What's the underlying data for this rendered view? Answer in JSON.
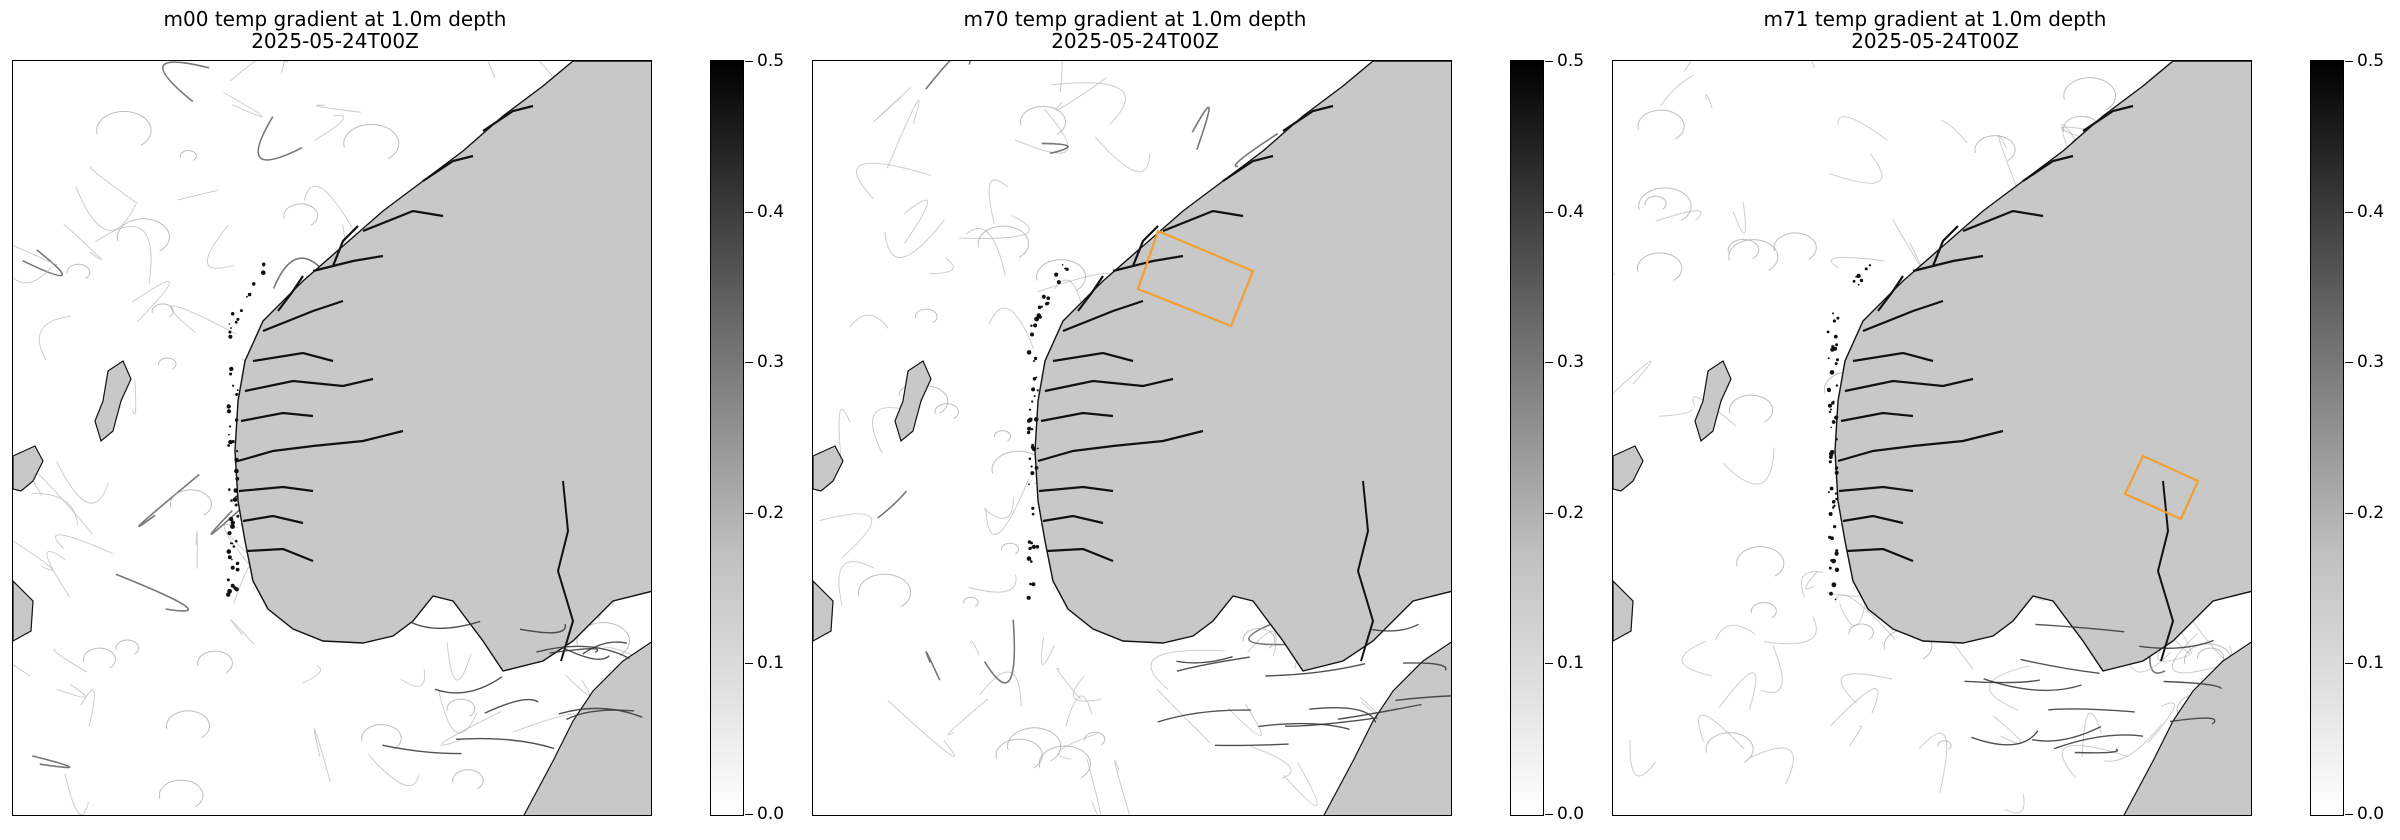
{
  "chart_data": [
    {
      "type": "heatmap",
      "title": "m00 temp gradient at 1.0m depth",
      "subtitle": "2025-05-24T00Z",
      "colorbar": {
        "ticks": [
          "0.0",
          "0.1",
          "0.2",
          "0.3",
          "0.4",
          "0.5"
        ],
        "range": [
          0.0,
          0.5
        ],
        "colormap": "white-to-black"
      },
      "highlight_box": "none"
    },
    {
      "type": "heatmap",
      "title": "m70 temp gradient at 1.0m depth",
      "subtitle": "2025-05-24T00Z",
      "colorbar": {
        "ticks": [
          "0.0",
          "0.1",
          "0.2",
          "0.3",
          "0.4",
          "0.5"
        ],
        "range": [
          0.0,
          0.5
        ],
        "colormap": "white-to-black"
      },
      "highlight_box": "west coast fjords"
    },
    {
      "type": "heatmap",
      "title": "m71 temp gradient at 1.0m depth",
      "subtitle": "2025-05-24T00Z",
      "colorbar": {
        "ticks": [
          "0.0",
          "0.1",
          "0.2",
          "0.3",
          "0.4",
          "0.5"
        ],
        "range": [
          0.0,
          0.5
        ],
        "colormap": "white-to-black"
      },
      "highlight_box": "southern fjord"
    }
  ],
  "colors": {
    "land": "#c8c8c8",
    "ocean": "#ffffff",
    "coast": "#111111",
    "highlight": "#f0a030"
  }
}
